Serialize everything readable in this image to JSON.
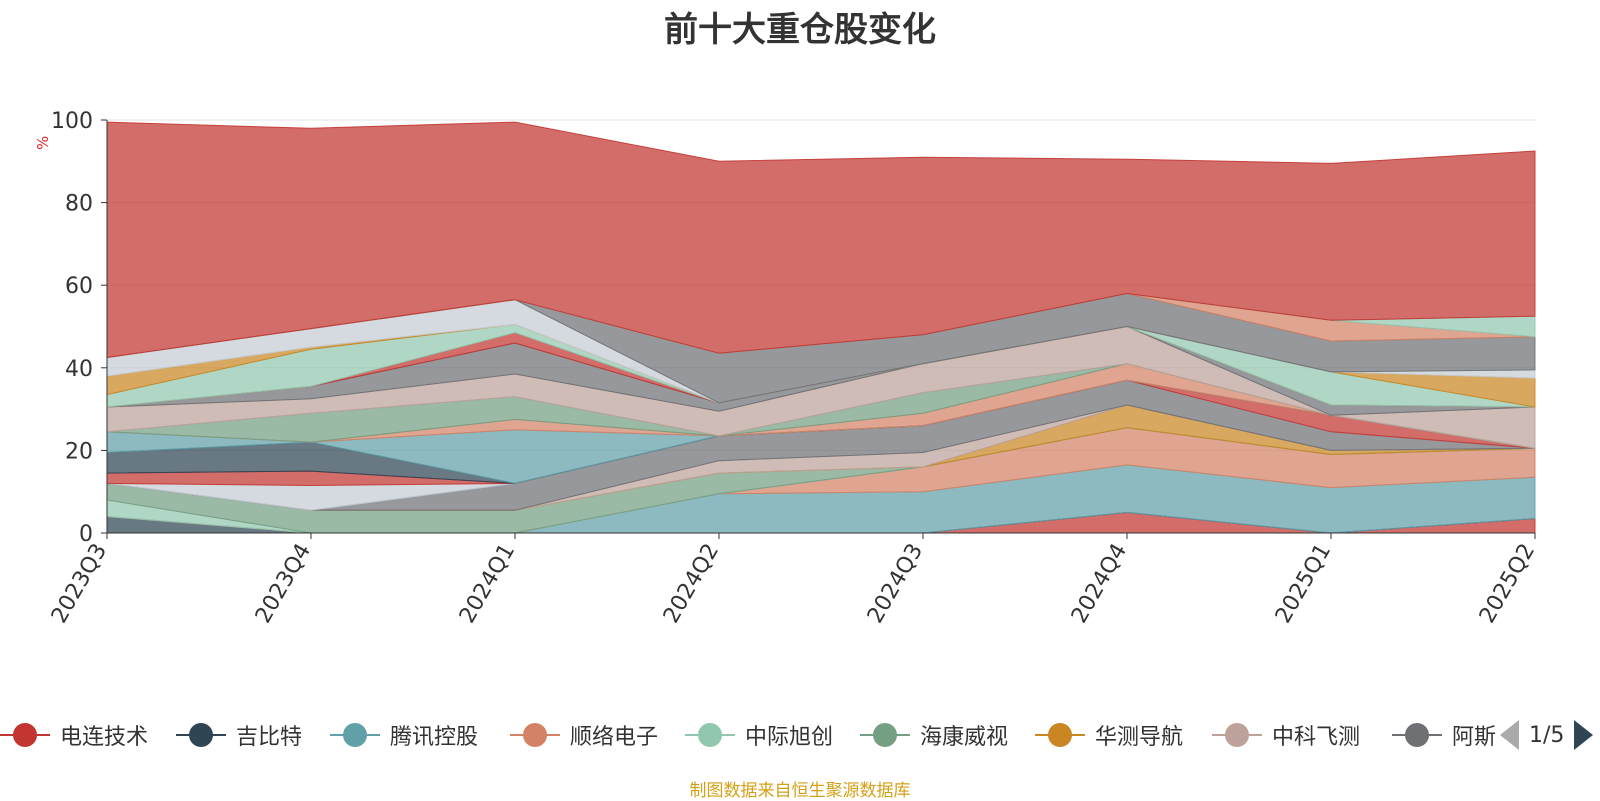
{
  "chart_data": {
    "type": "area",
    "title": "前十大重仓股变化",
    "ylabel": "%",
    "ylim": [
      0,
      100
    ],
    "y_ticks": [
      "0",
      "20",
      "40",
      "60",
      "80",
      "100"
    ],
    "categories": [
      "2023Q3",
      "2023Q4",
      "2024Q1",
      "2024Q2",
      "2024Q3",
      "2024Q4",
      "2025Q1",
      "2025Q2"
    ],
    "grid": true,
    "series": [
      {
        "name": "电连技术",
        "color": "#c23531",
        "values": [
          0,
          0,
          0,
          0,
          0,
          5,
          0,
          3.5
        ]
      },
      {
        "name": "吉比特",
        "color": "#2f4554",
        "values": [
          4,
          0,
          0,
          0,
          0,
          0,
          0,
          0
        ]
      },
      {
        "name": "腾讯控股",
        "color": "#61a0a8",
        "values": [
          0,
          0,
          0,
          9.5,
          10,
          11.5,
          11,
          10
        ]
      },
      {
        "name": "顺络电子",
        "color": "#d48265",
        "values": [
          0,
          0,
          0,
          0,
          6,
          9,
          8,
          7
        ]
      },
      {
        "name": "中际旭创",
        "color": "#91c7ae",
        "values": [
          4,
          0,
          0,
          0,
          0,
          0,
          0,
          0
        ]
      },
      {
        "name": "海康威视",
        "color": "#749f83",
        "values": [
          4,
          5.5,
          5.5,
          5,
          0,
          0,
          0,
          0
        ]
      },
      {
        "name": "华测导航",
        "color": "#ca8622",
        "values": [
          0,
          0,
          0,
          0,
          0,
          5.5,
          1,
          0
        ]
      },
      {
        "name": "中科飞测",
        "color": "#bda29a",
        "values": [
          0,
          0,
          0,
          3,
          3.5,
          0,
          0,
          0
        ]
      },
      {
        "name": "阿斯特",
        "color": "#6e7074",
        "values": [
          0,
          0,
          6.5,
          6,
          6.5,
          6,
          4.5,
          0
        ]
      },
      {
        "name": "",
        "color": "#546570",
        "values": [
          0,
          0,
          0,
          0,
          0,
          0,
          0,
          0
        ]
      },
      {
        "name": "",
        "color": "#c4ccd3",
        "values": [
          0,
          6,
          0,
          0,
          0,
          0,
          0,
          0
        ]
      },
      {
        "name": "",
        "color": "#c23531",
        "values": [
          2.5,
          3.5,
          0,
          0,
          0,
          0,
          4,
          0
        ]
      },
      {
        "name": "",
        "color": "#2f4554",
        "values": [
          5,
          7,
          0,
          0,
          0,
          0,
          0,
          0
        ]
      },
      {
        "name": "",
        "color": "#61a0a8",
        "values": [
          5,
          0,
          13,
          0,
          0,
          0,
          0,
          0
        ]
      },
      {
        "name": "",
        "color": "#d48265",
        "values": [
          0,
          0,
          2.5,
          0,
          3,
          4,
          0,
          0
        ]
      },
      {
        "name": "",
        "color": "#749f83",
        "values": [
          0,
          7,
          5.5,
          0,
          5,
          0,
          0,
          0
        ]
      },
      {
        "name": "",
        "color": "#bda29a",
        "values": [
          6,
          3.5,
          5.5,
          6,
          7,
          9,
          0,
          10
        ]
      },
      {
        "name": "",
        "color": "#6e7074",
        "values": [
          0,
          3,
          7.5,
          2,
          0,
          0,
          2.5,
          0
        ]
      },
      {
        "name": "",
        "color": "#c23531",
        "values": [
          0,
          0,
          2.5,
          0,
          0,
          0,
          0,
          0
        ]
      },
      {
        "name": "",
        "color": "#91c7ae",
        "values": [
          3,
          9,
          2,
          0,
          0,
          0,
          8,
          0
        ]
      },
      {
        "name": "",
        "color": "#ca8622",
        "values": [
          4.5,
          0.5,
          0,
          0,
          0,
          0,
          0,
          7
        ]
      },
      {
        "name": "",
        "color": "#c4ccd3",
        "values": [
          4.5,
          4.5,
          6,
          0,
          0,
          0,
          0,
          2
        ]
      },
      {
        "name": "",
        "color": "#6e7074",
        "values": [
          0,
          0,
          0,
          12,
          7,
          8,
          7.5,
          8
        ]
      },
      {
        "name": "",
        "color": "#d48265",
        "values": [
          0,
          0,
          0,
          0,
          0,
          0,
          5,
          0
        ]
      },
      {
        "name": "",
        "color": "#91c7ae",
        "values": [
          0,
          0,
          0,
          0,
          0,
          0,
          0,
          5
        ]
      },
      {
        "name": "",
        "color": "#c23531",
        "values": [
          57,
          48.5,
          43,
          46.5,
          43,
          32.5,
          38,
          40
        ]
      }
    ]
  },
  "legend": {
    "visible_items": [
      {
        "label": "电连技术",
        "color": "#c23531"
      },
      {
        "label": "吉比特",
        "color": "#2f4554"
      },
      {
        "label": "腾讯控股",
        "color": "#61a0a8"
      },
      {
        "label": "顺络电子",
        "color": "#d48265"
      },
      {
        "label": "中际旭创",
        "color": "#91c7ae"
      },
      {
        "label": "海康威视",
        "color": "#749f83"
      },
      {
        "label": "华测导航",
        "color": "#ca8622"
      },
      {
        "label": "中科飞测",
        "color": "#bda29a"
      },
      {
        "label": "阿斯",
        "color": "#6e7074"
      }
    ],
    "page_text": "1/5"
  },
  "footer": {
    "source": "制图数据来自恒生聚源数据库"
  }
}
